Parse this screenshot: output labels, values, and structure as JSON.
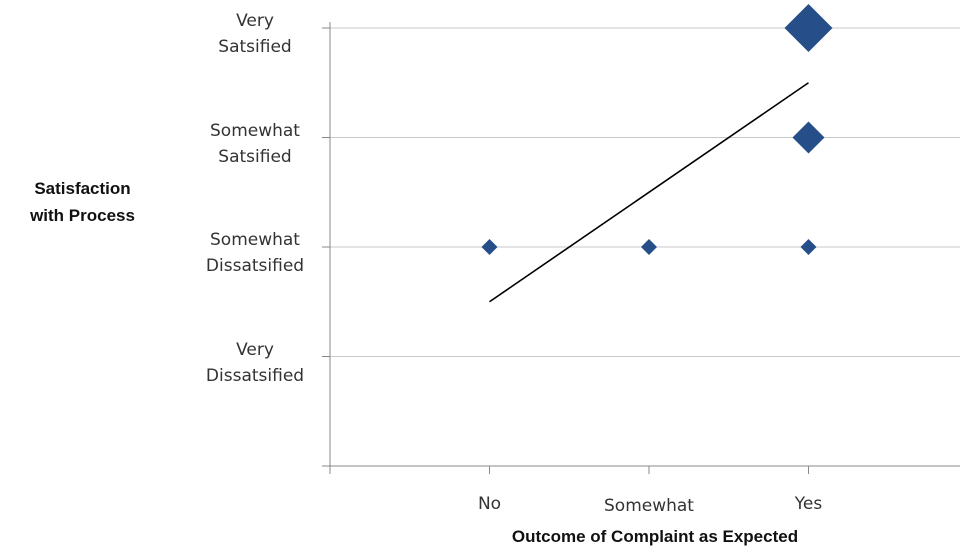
{
  "chart_data": {
    "type": "scatter",
    "ylabel": "Satisfaction with Process",
    "xlabel": "Outcome of Complaint as Expected",
    "x_categories": [
      "No",
      "Somewhat",
      "Yes"
    ],
    "y_categories": [
      "Very Dissatsified",
      "Somewhat Dissatsified",
      "Somewhat Satsified",
      "Very Satsified"
    ],
    "y_categories_display": [
      [
        "Very",
        "Dissatsified"
      ],
      [
        "Somewhat",
        "Dissatsified"
      ],
      [
        "Somewhat",
        "Satsified"
      ],
      [
        "Very",
        "Satsified"
      ]
    ],
    "x_range": [
      0,
      4
    ],
    "y_range": [
      0,
      4
    ],
    "points": [
      {
        "x": 1,
        "y": 2,
        "size": 1
      },
      {
        "x": 2,
        "y": 2,
        "size": 1
      },
      {
        "x": 3,
        "y": 2,
        "size": 1
      },
      {
        "x": 3,
        "y": 3,
        "size": 2
      },
      {
        "x": 3,
        "y": 4,
        "size": 3
      }
    ],
    "trendline": {
      "x": [
        1,
        3
      ],
      "y": [
        1.5,
        3.5
      ]
    },
    "grid": true,
    "colors": {
      "marker": "#264F8A",
      "grid": "#C8C8C8",
      "axis": "#888888",
      "trend": "#000000"
    }
  }
}
